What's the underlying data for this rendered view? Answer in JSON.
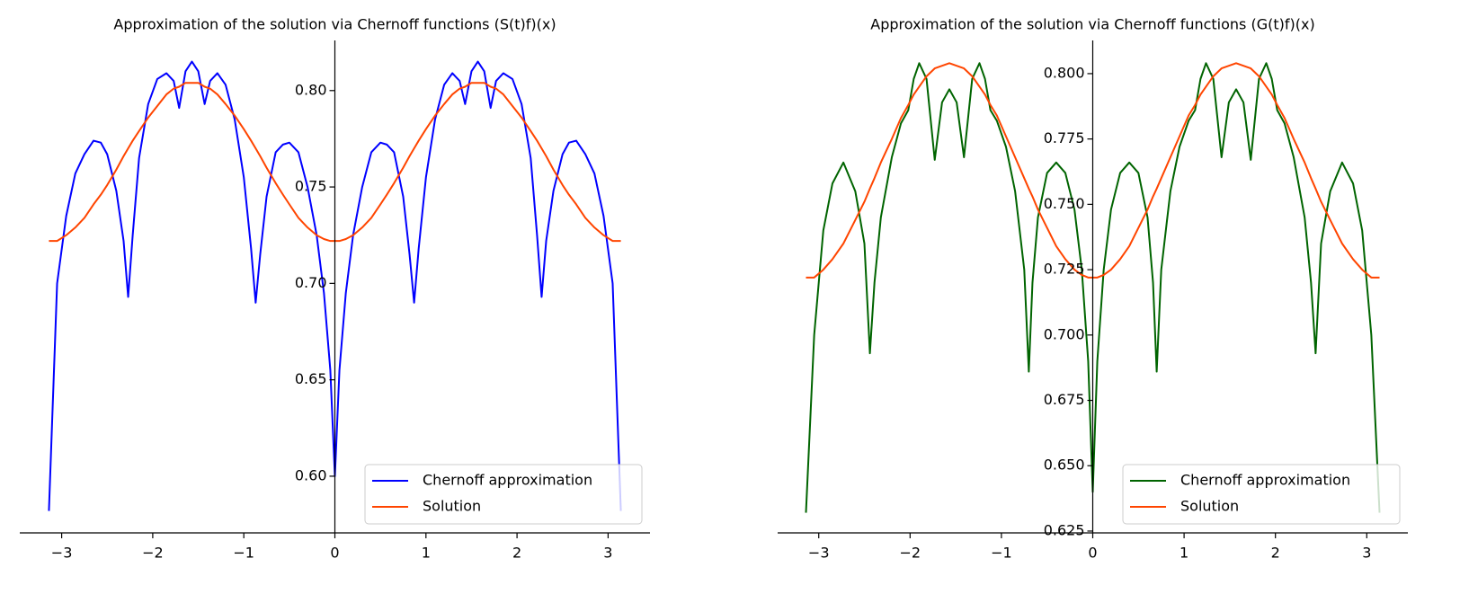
{
  "chart_data": [
    {
      "type": "line",
      "title": "Approximation of the solution via Chernoff functions (S(t)f)(x)",
      "x": [
        -3.14,
        -3.05,
        -2.95,
        -2.85,
        -2.75,
        -2.65,
        -2.57,
        -2.5,
        -2.4,
        -2.32,
        -2.27,
        -2.22,
        -2.15,
        -2.05,
        -1.95,
        -1.85,
        -1.77,
        -1.71,
        -1.64,
        -1.57,
        -1.5,
        -1.43,
        -1.37,
        -1.29,
        -1.2,
        -1.1,
        -1.0,
        -0.92,
        -0.87,
        -0.82,
        -0.75,
        -0.65,
        -0.57,
        -0.5,
        -0.4,
        -0.3,
        -0.2,
        -0.12,
        -0.05,
        0,
        0.05,
        0.12,
        0.2,
        0.3,
        0.4,
        0.5,
        0.57,
        0.65,
        0.75,
        0.82,
        0.87,
        0.92,
        1.0,
        1.1,
        1.2,
        1.29,
        1.37,
        1.43,
        1.5,
        1.57,
        1.64,
        1.71,
        1.77,
        1.85,
        1.95,
        2.05,
        2.15,
        2.22,
        2.27,
        2.32,
        2.4,
        2.5,
        2.57,
        2.65,
        2.75,
        2.85,
        2.95,
        3.05,
        3.14
      ],
      "series": [
        {
          "name": "Chernoff approximation",
          "color": "#0000ff",
          "values": [
            0.582,
            0.7,
            0.735,
            0.757,
            0.767,
            0.774,
            0.773,
            0.767,
            0.748,
            0.722,
            0.693,
            0.725,
            0.765,
            0.793,
            0.806,
            0.809,
            0.805,
            0.791,
            0.81,
            0.815,
            0.81,
            0.793,
            0.805,
            0.809,
            0.803,
            0.785,
            0.755,
            0.718,
            0.69,
            0.715,
            0.745,
            0.768,
            0.772,
            0.773,
            0.768,
            0.75,
            0.725,
            0.695,
            0.655,
            0.6,
            0.655,
            0.695,
            0.725,
            0.75,
            0.768,
            0.773,
            0.772,
            0.768,
            0.745,
            0.715,
            0.69,
            0.718,
            0.755,
            0.785,
            0.803,
            0.809,
            0.805,
            0.793,
            0.81,
            0.815,
            0.81,
            0.791,
            0.805,
            0.809,
            0.806,
            0.793,
            0.765,
            0.725,
            0.693,
            0.722,
            0.748,
            0.767,
            0.773,
            0.774,
            0.767,
            0.757,
            0.735,
            0.7,
            0.582
          ]
        },
        {
          "name": "Solution",
          "color": "#ff4500",
          "values": [
            0.722,
            0.722,
            0.725,
            0.729,
            0.734,
            0.741,
            0.746,
            0.751,
            0.759,
            0.766,
            0.77,
            0.774,
            0.779,
            0.786,
            0.792,
            0.798,
            0.801,
            0.802,
            0.804,
            0.804,
            0.804,
            0.802,
            0.801,
            0.798,
            0.793,
            0.787,
            0.78,
            0.774,
            0.77,
            0.766,
            0.76,
            0.752,
            0.746,
            0.741,
            0.734,
            0.729,
            0.725,
            0.723,
            0.722,
            0.722,
            0.722,
            0.723,
            0.725,
            0.729,
            0.734,
            0.741,
            0.746,
            0.752,
            0.76,
            0.766,
            0.77,
            0.774,
            0.78,
            0.787,
            0.793,
            0.798,
            0.801,
            0.802,
            0.804,
            0.804,
            0.804,
            0.802,
            0.801,
            0.798,
            0.792,
            0.786,
            0.779,
            0.774,
            0.77,
            0.766,
            0.759,
            0.751,
            0.746,
            0.741,
            0.734,
            0.729,
            0.725,
            0.722,
            0.722
          ]
        }
      ],
      "xlim": [
        -3.46,
        3.46
      ],
      "ylim": [
        0.5706,
        0.826
      ],
      "xticks": [
        {
          "value": -3,
          "label": "−3"
        },
        {
          "value": -2,
          "label": "−2"
        },
        {
          "value": -1,
          "label": "−1"
        },
        0,
        1,
        2,
        3
      ],
      "yticks": [
        {
          "value": 0.6,
          "label": "0.60"
        },
        0.65,
        {
          "value": 0.7,
          "label": "0.70"
        },
        0.75,
        {
          "value": 0.8,
          "label": "0.80"
        }
      ],
      "legend": "lower right"
    },
    {
      "type": "line",
      "title": "Approximation of the solution via Chernoff functions (G(t)f)(x)",
      "x": [
        -3.14,
        -3.05,
        -2.95,
        -2.85,
        -2.73,
        -2.6,
        -2.5,
        -2.44,
        -2.39,
        -2.32,
        -2.2,
        -2.1,
        -2.02,
        -1.96,
        -1.9,
        -1.82,
        -1.73,
        -1.65,
        -1.57,
        -1.49,
        -1.41,
        -1.32,
        -1.24,
        -1.18,
        -1.12,
        -1.05,
        -0.95,
        -0.85,
        -0.75,
        -0.7,
        -0.66,
        -0.6,
        -0.5,
        -0.4,
        -0.3,
        -0.2,
        -0.12,
        -0.05,
        0,
        0.05,
        0.12,
        0.2,
        0.3,
        0.4,
        0.5,
        0.6,
        0.66,
        0.7,
        0.75,
        0.85,
        0.95,
        1.05,
        1.12,
        1.18,
        1.24,
        1.32,
        1.41,
        1.49,
        1.57,
        1.65,
        1.73,
        1.82,
        1.9,
        1.96,
        2.02,
        2.1,
        2.2,
        2.32,
        2.39,
        2.44,
        2.5,
        2.6,
        2.73,
        2.85,
        2.95,
        3.05,
        3.14
      ],
      "series": [
        {
          "name": "Chernoff approximation",
          "color": "#006400",
          "values": [
            0.632,
            0.7,
            0.74,
            0.758,
            0.766,
            0.755,
            0.735,
            0.693,
            0.72,
            0.745,
            0.768,
            0.781,
            0.786,
            0.798,
            0.804,
            0.798,
            0.767,
            0.789,
            0.794,
            0.789,
            0.768,
            0.798,
            0.804,
            0.798,
            0.786,
            0.782,
            0.772,
            0.755,
            0.725,
            0.686,
            0.72,
            0.745,
            0.762,
            0.766,
            0.762,
            0.748,
            0.725,
            0.69,
            0.64,
            0.69,
            0.725,
            0.748,
            0.762,
            0.766,
            0.762,
            0.745,
            0.72,
            0.686,
            0.725,
            0.755,
            0.772,
            0.782,
            0.786,
            0.798,
            0.804,
            0.798,
            0.768,
            0.789,
            0.794,
            0.789,
            0.767,
            0.798,
            0.804,
            0.798,
            0.786,
            0.781,
            0.768,
            0.745,
            0.72,
            0.693,
            0.735,
            0.755,
            0.766,
            0.758,
            0.74,
            0.7,
            0.632
          ]
        },
        {
          "name": "Solution",
          "color": "#ff4500",
          "values": [
            0.722,
            0.722,
            0.725,
            0.729,
            0.735,
            0.744,
            0.751,
            0.756,
            0.76,
            0.766,
            0.775,
            0.783,
            0.788,
            0.792,
            0.795,
            0.799,
            0.802,
            0.803,
            0.804,
            0.803,
            0.802,
            0.799,
            0.795,
            0.792,
            0.788,
            0.784,
            0.776,
            0.768,
            0.76,
            0.756,
            0.753,
            0.748,
            0.741,
            0.734,
            0.729,
            0.725,
            0.723,
            0.722,
            0.722,
            0.722,
            0.723,
            0.725,
            0.729,
            0.734,
            0.741,
            0.748,
            0.753,
            0.756,
            0.76,
            0.768,
            0.776,
            0.784,
            0.788,
            0.792,
            0.795,
            0.799,
            0.802,
            0.803,
            0.804,
            0.803,
            0.802,
            0.799,
            0.795,
            0.792,
            0.788,
            0.783,
            0.775,
            0.766,
            0.76,
            0.756,
            0.751,
            0.744,
            0.735,
            0.729,
            0.725,
            0.722,
            0.722
          ]
        }
      ],
      "xlim": [
        -3.45,
        3.45
      ],
      "ylim": [
        0.6243,
        0.8127
      ],
      "xticks": [
        {
          "value": -3,
          "label": "−3"
        },
        {
          "value": -2,
          "label": "−2"
        },
        {
          "value": -1,
          "label": "−1"
        },
        0,
        1,
        2,
        3
      ],
      "yticks": [
        0.625,
        {
          "value": 0.65,
          "label": "0.650"
        },
        0.675,
        {
          "value": 0.7,
          "label": "0.700"
        },
        0.725,
        {
          "value": 0.75,
          "label": "0.750"
        },
        0.775,
        {
          "value": 0.8,
          "label": "0.800"
        }
      ],
      "legend": "lower right"
    }
  ]
}
